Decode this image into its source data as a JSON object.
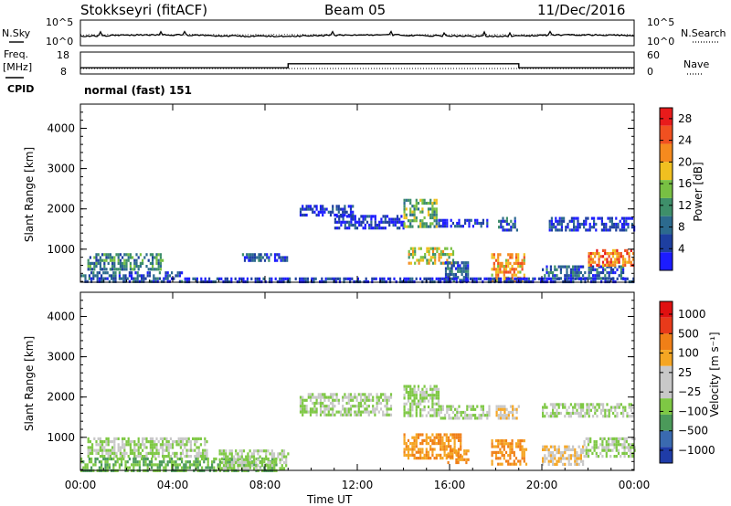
{
  "header": {
    "site": "Stokkseyri (fitACF)",
    "beam": "Beam 05",
    "date": "11/Dec/2016"
  },
  "labels": {
    "nsky": "N.Sky",
    "nsearch": "N.Search",
    "freq_line1": "Freq.",
    "freq_line2": "[MHz]",
    "nave": "Nave",
    "cpid": "CPID",
    "cpid_value": "normal (fast) 151",
    "x_axis_title": "Time UT",
    "y_axis_title": "Slant Range [km]",
    "power_cbar_title": "Power [dB]",
    "velocity_cbar_title": "Velocity [m s⁻¹]"
  },
  "noise_panel": {
    "left_ticks": [
      "10^5",
      "10^0"
    ],
    "right_ticks": [
      "10^5",
      "10^0"
    ]
  },
  "freq_panel": {
    "left_ticks": [
      "18",
      "8"
    ],
    "right_ticks": [
      "60",
      "0"
    ],
    "freq_line_mhz": 10.5,
    "nave_segments": [
      {
        "start": 0,
        "end": 9,
        "value": 17
      },
      {
        "start": 9,
        "end": 19,
        "value": 28
      },
      {
        "start": 19,
        "end": 24,
        "value": 17
      }
    ]
  },
  "colors": {
    "power_scale": [
      "#1c1cff",
      "#1e3fa0",
      "#2c6a8e",
      "#3e8f6a",
      "#78c043",
      "#f0c020",
      "#f58a1e",
      "#f05020",
      "#e81b1b"
    ],
    "velocity_scale": [
      "#1f3ca8",
      "#3a6ab0",
      "#4b9a5a",
      "#7ec844",
      "#c8c8c8",
      "#c8c8c8",
      "#f5a623",
      "#f07f17",
      "#e83a1a",
      "#e01010"
    ]
  },
  "chart_data": [
    {
      "type": "heatmap",
      "name": "Power",
      "x_range": [
        0,
        24
      ],
      "x_ticks": [
        "00:00",
        "04:00",
        "08:00",
        "12:00",
        "16:00",
        "20:00",
        "00:00"
      ],
      "xlabel": "Time UT",
      "ylabel": "Slant Range [km]",
      "ylim": [
        180,
        4600
      ],
      "y_ticks": [
        "1000",
        "2000",
        "3000",
        "4000"
      ],
      "colorbar": {
        "label": "Power [dB]",
        "ticks": [
          "4",
          "8",
          "12",
          "16",
          "20",
          "24",
          "28"
        ]
      },
      "echo_regions": [
        {
          "t0": 0.0,
          "t1": 4.5,
          "r0": 200,
          "r1": 450,
          "level": 2
        },
        {
          "t0": 0.3,
          "t1": 3.6,
          "r0": 500,
          "r1": 900,
          "level": 3
        },
        {
          "t0": 7.0,
          "t1": 9.0,
          "r0": 750,
          "r1": 900,
          "level": 2
        },
        {
          "t0": 9.5,
          "t1": 11.8,
          "r0": 1850,
          "r1": 2100,
          "level": 1
        },
        {
          "t0": 11.0,
          "t1": 14.0,
          "r0": 1550,
          "r1": 1850,
          "level": 1
        },
        {
          "t0": 14.0,
          "t1": 15.4,
          "r0": 1550,
          "r1": 2250,
          "level": 4
        },
        {
          "t0": 14.2,
          "t1": 16.2,
          "r0": 650,
          "r1": 1050,
          "level": 5
        },
        {
          "t0": 15.5,
          "t1": 17.6,
          "r0": 1550,
          "r1": 1750,
          "level": 1
        },
        {
          "t0": 15.8,
          "t1": 16.8,
          "r0": 200,
          "r1": 700,
          "level": 2
        },
        {
          "t0": 17.8,
          "t1": 19.2,
          "r0": 200,
          "r1": 900,
          "level": 6
        },
        {
          "t0": 18.1,
          "t1": 18.9,
          "r0": 1500,
          "r1": 1800,
          "level": 2
        },
        {
          "t0": 20.3,
          "t1": 24.0,
          "r0": 1500,
          "r1": 1800,
          "level": 1
        },
        {
          "t0": 20.0,
          "t1": 23.5,
          "r0": 300,
          "r1": 600,
          "level": 2
        },
        {
          "t0": 22.0,
          "t1": 24.0,
          "r0": 600,
          "r1": 1000,
          "level": 7
        },
        {
          "t0": 4.5,
          "t1": 24.0,
          "r0": 200,
          "r1": 300,
          "level": 1
        }
      ]
    },
    {
      "type": "heatmap",
      "name": "Velocity",
      "x_range": [
        0,
        24
      ],
      "x_ticks": [
        "00:00",
        "04:00",
        "08:00",
        "12:00",
        "16:00",
        "20:00",
        "00:00"
      ],
      "xlabel": "Time UT",
      "ylabel": "Slant Range [km]",
      "ylim": [
        180,
        4600
      ],
      "y_ticks": [
        "1000",
        "2000",
        "3000",
        "4000"
      ],
      "colorbar": {
        "label": "Velocity [m s⁻¹]",
        "ticks": [
          "1000",
          "500",
          "100",
          "25",
          "−25",
          "−100",
          "−500",
          "−1000"
        ]
      },
      "echo_regions": [
        {
          "t0": 0.3,
          "t1": 5.5,
          "r0": 550,
          "r1": 1000,
          "vclass": 4
        },
        {
          "t0": 0.0,
          "t1": 8.5,
          "r0": 200,
          "r1": 500,
          "vclass": 3
        },
        {
          "t0": 6.0,
          "t1": 9.0,
          "r0": 200,
          "r1": 700,
          "vclass": 4
        },
        {
          "t0": 9.5,
          "t1": 13.5,
          "r0": 1550,
          "r1": 2100,
          "vclass": 4
        },
        {
          "t0": 14.0,
          "t1": 15.5,
          "r0": 1550,
          "r1": 2300,
          "vclass": 4
        },
        {
          "t0": 14.0,
          "t1": 16.5,
          "r0": 450,
          "r1": 1100,
          "vclass": 7
        },
        {
          "t0": 15.5,
          "t1": 17.7,
          "r0": 1500,
          "r1": 1800,
          "vclass": 4
        },
        {
          "t0": 15.9,
          "t1": 16.8,
          "r0": 350,
          "r1": 700,
          "vclass": 7
        },
        {
          "t0": 17.8,
          "t1": 19.3,
          "r0": 300,
          "r1": 950,
          "vclass": 7
        },
        {
          "t0": 18.0,
          "t1": 19.0,
          "r0": 1500,
          "r1": 1800,
          "vclass": 6
        },
        {
          "t0": 20.0,
          "t1": 24.0,
          "r0": 1550,
          "r1": 1850,
          "vclass": 4
        },
        {
          "t0": 20.0,
          "t1": 21.8,
          "r0": 350,
          "r1": 800,
          "vclass": 6
        },
        {
          "t0": 21.8,
          "t1": 24.0,
          "r0": 500,
          "r1": 1000,
          "vclass": 4
        }
      ]
    }
  ]
}
